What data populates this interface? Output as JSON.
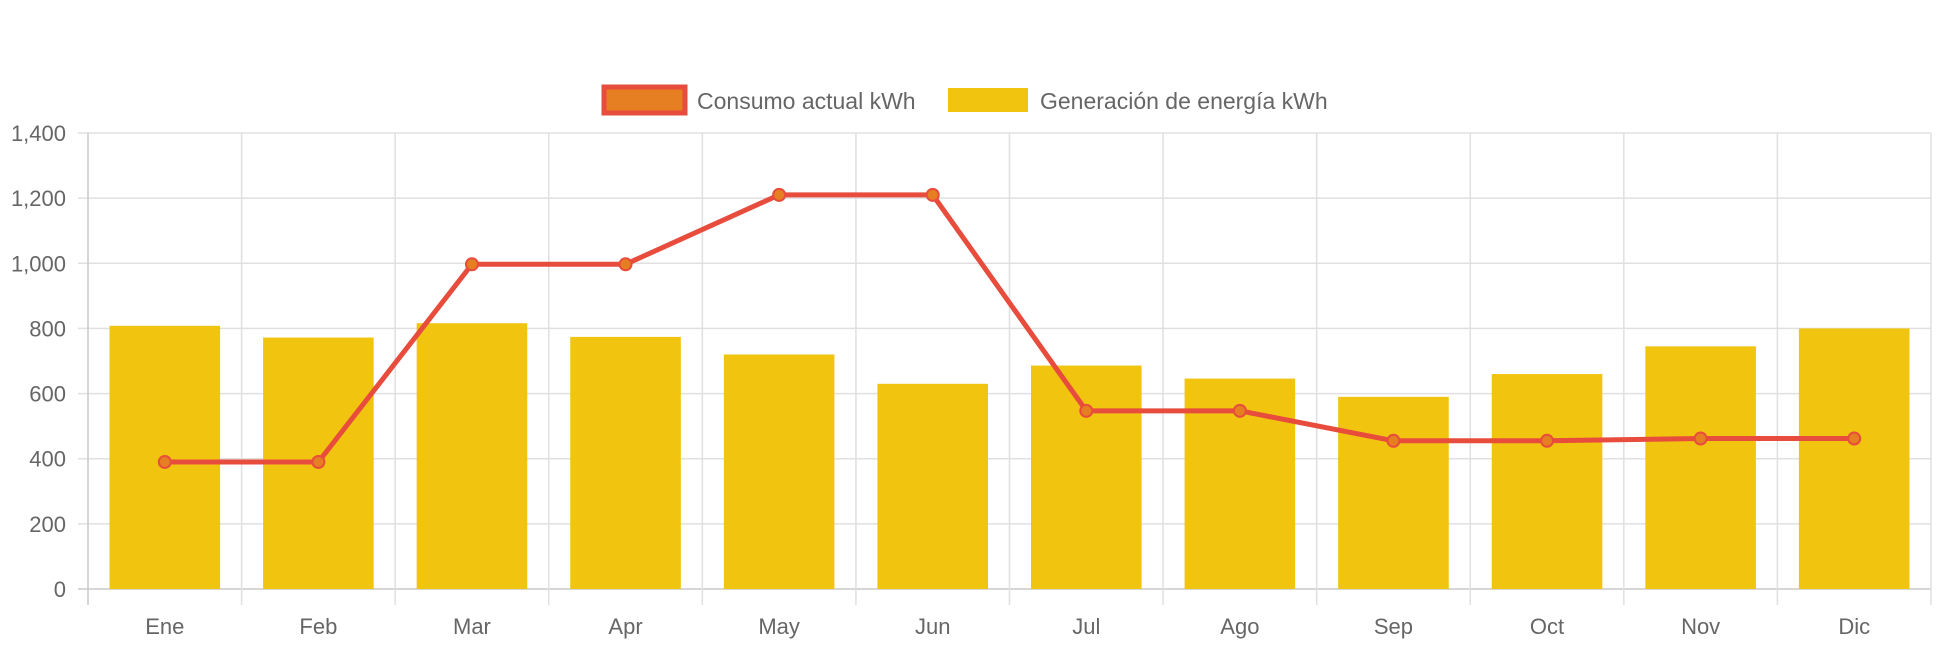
{
  "chart_data": {
    "type": "bar",
    "categories": [
      "Ene",
      "Feb",
      "Mar",
      "Apr",
      "May",
      "Jun",
      "Jul",
      "Ago",
      "Sep",
      "Oct",
      "Nov",
      "Dic"
    ],
    "series": [
      {
        "name": "Consumo actual kWh",
        "type": "line",
        "color": "#e74c3c",
        "point_color": "#e67e22",
        "values": [
          390,
          390,
          997,
          997,
          1210,
          1210,
          547,
          547,
          455,
          455,
          462,
          462
        ]
      },
      {
        "name": "Generación de energía kWh",
        "type": "bar",
        "color": "#f1c40f",
        "values": [
          808,
          772,
          816,
          774,
          720,
          630,
          686,
          646,
          590,
          660,
          745,
          800
        ]
      }
    ],
    "ylim": [
      0,
      1400
    ],
    "yticks": [
      "0",
      "200",
      "400",
      "600",
      "800",
      "1,000",
      "1,200",
      "1,400"
    ],
    "grid": true,
    "legend": "top-center"
  }
}
